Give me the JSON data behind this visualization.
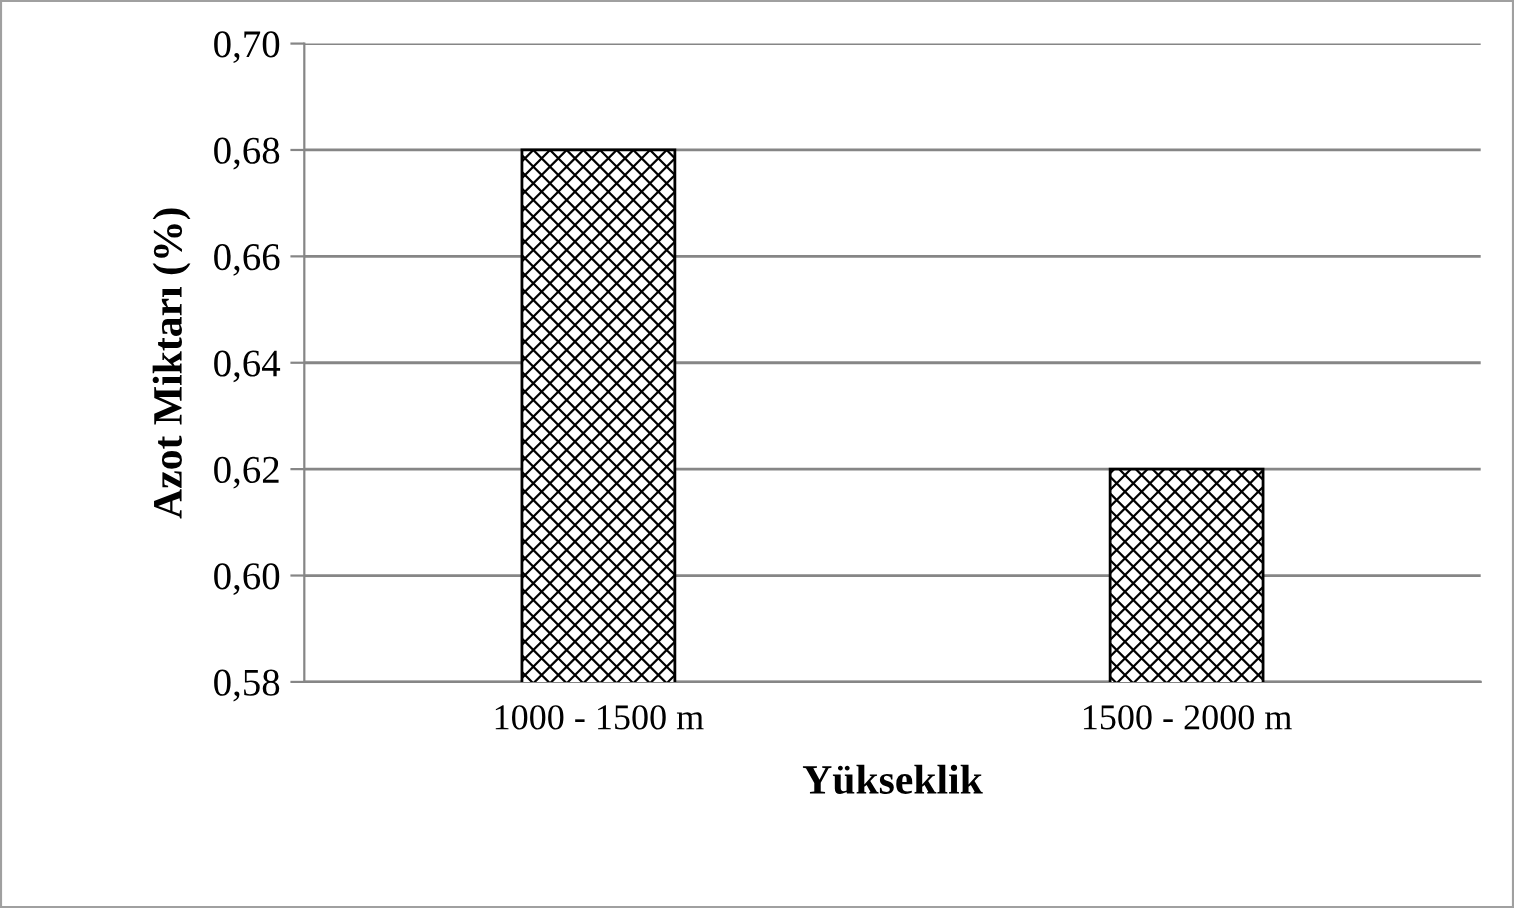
{
  "chart_data": {
    "type": "bar",
    "xlabel": "Yükseklik",
    "ylabel": "Azot Miktarı (%)",
    "categories": [
      "1000 - 1500 m",
      "1500 - 2000 m"
    ],
    "values": [
      0.68,
      0.62
    ],
    "color": "#000000",
    "ylim": [
      0.58,
      0.7
    ],
    "yticks": [
      {
        "value": 0.58,
        "label": "0,58"
      },
      {
        "value": 0.6,
        "label": "0,60"
      },
      {
        "value": 0.62,
        "label": "0,62"
      },
      {
        "value": 0.64,
        "label": "0,64"
      },
      {
        "value": 0.66,
        "label": "0,66"
      },
      {
        "value": 0.68,
        "label": "0,68"
      },
      {
        "value": 0.7,
        "label": "0,70"
      }
    ],
    "grid": "y",
    "legend": false
  }
}
